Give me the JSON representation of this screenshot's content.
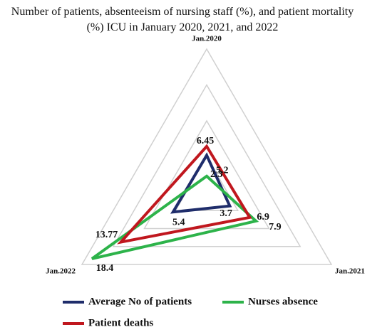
{
  "chart_data": {
    "type": "radar",
    "title": "Number of patients, absenteeism of nursing staff (%), and patient mortality (%) ICU in January 2020, 2021, and 2022",
    "categories": [
      "Jan.2020",
      "Jan.2021",
      "Jan.2022"
    ],
    "rlim": [
      0,
      20
    ],
    "rticks": [
      0,
      5,
      10,
      15,
      20
    ],
    "grid": true,
    "series": [
      {
        "name": "Average No of patients",
        "color": "#1f2d6b",
        "values": [
          5.2,
          3.7,
          5.4
        ]
      },
      {
        "name": "Nurses absence",
        "color": "#2db34a",
        "values": [
          2.3,
          7.9,
          18.4
        ]
      },
      {
        "name": "Patient deaths",
        "color": "#c0171e",
        "values": [
          6.45,
          6.9,
          13.77
        ]
      }
    ]
  }
}
